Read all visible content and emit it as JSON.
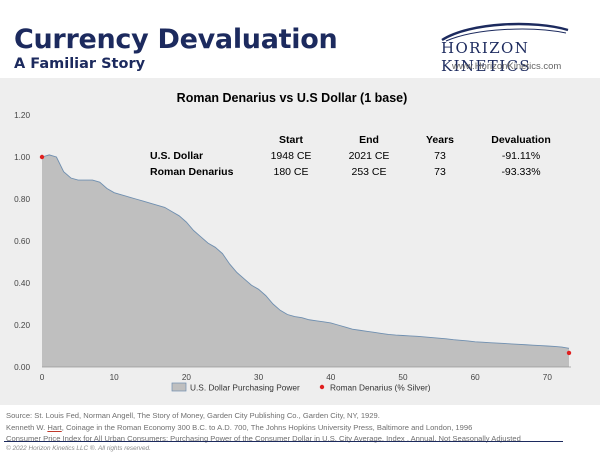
{
  "header": {
    "title": "Currency Devaluation",
    "subtitle": "A Familiar Story",
    "logo_text": "Horizon Kinetics",
    "logo_url": "www.HorizonKinetics.com"
  },
  "colors": {
    "navy": "#1c2a5e",
    "area_fill": "#bfbfbf",
    "area_stroke": "#6f8fb0",
    "silver_marker": "#e02020",
    "panel_bg": "#eeeeee"
  },
  "table": {
    "headers": [
      "",
      "Start",
      "End",
      "Years",
      "Devaluation"
    ],
    "rows": [
      [
        "U.S. Dollar",
        "1948 CE",
        "2021 CE",
        "73",
        "-91.11%"
      ],
      [
        "Roman Denarius",
        "180 CE",
        "253 CE",
        "73",
        "-93.33%"
      ]
    ]
  },
  "chart_data": {
    "type": "area",
    "title": "Roman Denarius vs U.S Dollar (1 base)",
    "xlabel": "",
    "ylabel": "",
    "xlim": [
      0,
      73
    ],
    "ylim": [
      0,
      1.2
    ],
    "x_ticks": [
      "0",
      "10",
      "20",
      "30",
      "40",
      "50",
      "60",
      "70"
    ],
    "y_ticks": [
      "0.00",
      "0.20",
      "0.40",
      "0.60",
      "0.80",
      "1.00",
      "1.20"
    ],
    "grid": false,
    "legend_position": "bottom",
    "series": [
      {
        "name": "U.S. Dollar Purchasing Power",
        "type": "area",
        "x": [
          0,
          1,
          2,
          3,
          4,
          5,
          6,
          7,
          8,
          9,
          10,
          11,
          12,
          13,
          14,
          15,
          16,
          17,
          18,
          19,
          20,
          21,
          22,
          23,
          24,
          25,
          26,
          27,
          28,
          29,
          30,
          31,
          32,
          33,
          34,
          35,
          36,
          37,
          38,
          39,
          40,
          41,
          42,
          43,
          44,
          45,
          46,
          47,
          48,
          49,
          50,
          51,
          52,
          53,
          54,
          55,
          56,
          57,
          58,
          59,
          60,
          61,
          62,
          63,
          64,
          65,
          66,
          67,
          68,
          69,
          70,
          71,
          72,
          73
        ],
        "values": [
          1.0,
          1.01,
          1.0,
          0.93,
          0.9,
          0.89,
          0.89,
          0.89,
          0.88,
          0.85,
          0.83,
          0.82,
          0.81,
          0.8,
          0.79,
          0.78,
          0.77,
          0.76,
          0.74,
          0.72,
          0.69,
          0.65,
          0.62,
          0.59,
          0.57,
          0.54,
          0.49,
          0.45,
          0.42,
          0.39,
          0.37,
          0.34,
          0.3,
          0.27,
          0.25,
          0.24,
          0.235,
          0.225,
          0.22,
          0.215,
          0.21,
          0.2,
          0.19,
          0.18,
          0.175,
          0.17,
          0.165,
          0.16,
          0.155,
          0.152,
          0.15,
          0.148,
          0.146,
          0.143,
          0.14,
          0.137,
          0.134,
          0.13,
          0.127,
          0.124,
          0.12,
          0.118,
          0.116,
          0.114,
          0.112,
          0.11,
          0.108,
          0.106,
          0.104,
          0.102,
          0.1,
          0.098,
          0.095,
          0.089
        ]
      },
      {
        "name": "Roman Denarius (% Silver)",
        "type": "scatter",
        "x": [
          0,
          73
        ],
        "values": [
          1.0,
          0.067
        ]
      }
    ]
  },
  "sources": [
    "Source: St. Louis Fed, Norman Angell, The Story of Money, Garden City Publishing Co., Garden City, NY, 1929.",
    "Kenneth W. Hart, Coinage in the Roman Economy 300 B.C. to A.D. 700, The Johns Hopkins University Press, Baltimore and London, 1996",
    "Consumer Price Index for All Urban Consumers: Purchasing Power of the Consumer Dollar in U.S. City Average, Index , Annual, Not Seasonally Adjusted"
  ],
  "source_parts": {
    "line2_pre": "Kenneth W. ",
    "line2_underlined": "Hart",
    "line2_post": ", Coinage in the Roman Economy 300 B.C. to A.D. 700, The Johns Hopkins University Press, Baltimore and London, 1996"
  },
  "copyright": "© 2022 Horizon Kinetics LLC ®. All rights reserved."
}
